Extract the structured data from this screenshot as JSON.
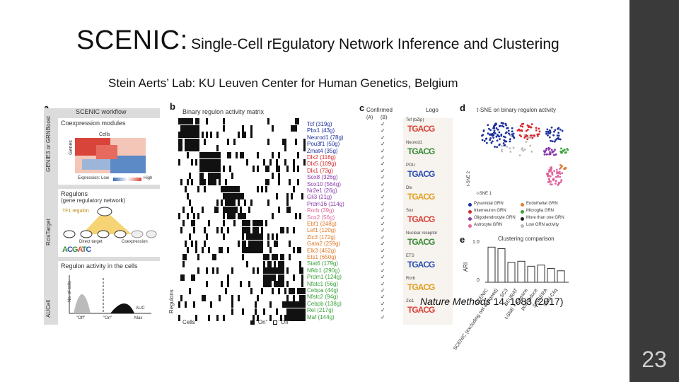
{
  "slide": {
    "title_main": "SCENIC:",
    "title_rest": "Single-Cell rEgulatory Network Inference and Clustering",
    "subtitle": "Stein Aerts’ Lab:  KU Leuven Center for Human Genetics, Belgium",
    "citation_journal": "Nature Methods",
    "citation_rest": " 14, 1083 (2017)",
    "page_number": "23"
  },
  "figure": {
    "panel_a": {
      "letter": "a",
      "header": "SCENIC workflow",
      "step1": "Coexpression modules",
      "step1_side": "GENIE3 or GRNBoost",
      "cells_label": "Cells",
      "genes_label": "Genes",
      "expr_label": "Expression: Low",
      "expr_high": "High",
      "step2": "Regulons",
      "step2_sub": "(gene regulatory network)",
      "step2_side": "RcisTarget",
      "tf1_regulon": "TF1 regulon",
      "direct_target": "Direct target",
      "coexpression": "Coexpression",
      "step3": "Regulon activity in the cells",
      "step3_side": "AUCell",
      "no_cells": "No. of cells",
      "auc": "AUC",
      "off": "\"Off\"",
      "on": "\"On\"",
      "max": "Max"
    },
    "panel_b": {
      "letter": "b",
      "header": "Binary regulon activity matrix",
      "regulons_label": "Regulons",
      "cells_label": "Cells",
      "legend_on": "\"On\"",
      "legend_off": "\"Off\"",
      "regulons": [
        "Tcf (319g)",
        "Pbx1 (43g)",
        "Neurod1 (78g)",
        "Pou3f1 (50g)",
        "Zmat4 (35g)",
        "Dlx2 (116g)",
        "Dlx5 (109g)",
        "Dlx1 (73g)",
        "Sox8 (326g)",
        "Sox10 (564g)",
        "Nr2e1 (26g)",
        "Gli3 (21g)",
        "Prdm16 (114g)",
        "Rorb (39g)",
        "Sox2 (56g)",
        "Ebf1 (248g)",
        "Lef1 (120g)",
        "Zic3 (172g)",
        "Gata2 (259g)",
        "Elk3 (462g)",
        "Ets1 (650g)",
        "Stat6 (179g)",
        "Nfkb1 (290g)",
        "Prdm1 (124g)",
        "Nfatc1 (56g)",
        "Cebpa (44g)",
        "Nfatc2 (94g)",
        "Cebpb (138g)",
        "Rel (217g)",
        "Maf (144g)"
      ]
    },
    "panel_c": {
      "letter": "c",
      "header": "Confirmed",
      "col_a": "(A)",
      "col_b": "(B)",
      "logo_header": "Logo",
      "logo_labels": [
        "Tef (bZip)",
        "Neurod1",
        "POU",
        "Dlx",
        "Sox",
        "Nuclear receptor",
        "ETS",
        "Rorb",
        "Zic1"
      ]
    },
    "panel_d": {
      "letter": "d",
      "header": "t-SNE on binary regulon activity",
      "axis1": "t-SNE 1",
      "axis2": "t-SNE 2",
      "legend": [
        {
          "label": "Pyramidal GRN",
          "color": "#1c2f9e"
        },
        {
          "label": "Endothelial GRN",
          "color": "#e07b2a"
        },
        {
          "label": "Interneuron GRN",
          "color": "#d9262b"
        },
        {
          "label": "Microglia GRN",
          "color": "#3aa23a"
        },
        {
          "label": "Oligodendrocyte GRN",
          "color": "#8a3aa8"
        },
        {
          "label": "More than one GRN",
          "color": "#222222"
        },
        {
          "label": "Astrocyte GRN",
          "color": "#e0669d"
        },
        {
          "label": "Low GRN activity",
          "color": "#bbbbbb"
        }
      ]
    },
    "panel_e": {
      "letter": "e",
      "header": "Clustering comparison",
      "ylabel": "ARI",
      "ytick_top": "1.0",
      "ytick_bottom": "0",
      "methods": [
        "SCENIC",
        "SCENIC (excluding not assigned)",
        "SC3",
        "SEURAT",
        "t-SNE + kmeans",
        "pcaReduce",
        "SINCERA",
        "SNN-Cliq"
      ]
    }
  }
}
